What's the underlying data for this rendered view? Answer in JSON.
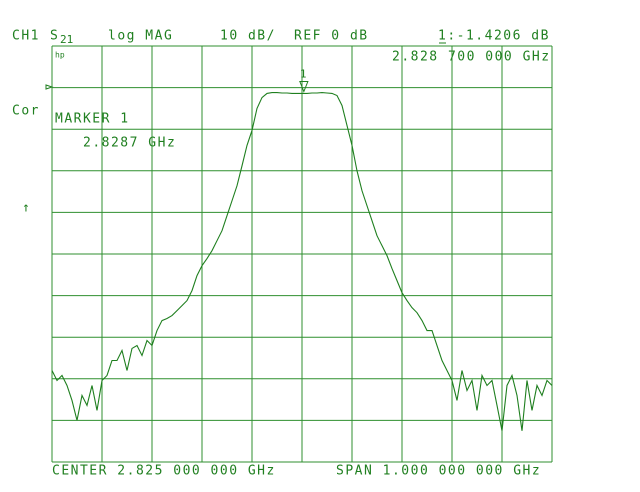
{
  "chart_data": {
    "type": "line",
    "labels": {
      "channel": "CH1",
      "param": "S",
      "param_sub": "21",
      "format": "log MAG",
      "scale": "10 dB/",
      "ref": "REF 0 dB",
      "marker_readout": "1:-1.4206 dB",
      "marker_freq": "2.828 700 000 GHz",
      "hp": "hp",
      "cor": "Cor",
      "marker_title": "MARKER 1",
      "marker_value": "2.8287 GHz",
      "arrow": "↑",
      "center": "CENTER 2.825 000 000 GHz",
      "span": "SPAN 1.000 000 000 GHz",
      "marker_num": "1"
    },
    "color": "#1f7f1f",
    "grid": true,
    "xlim": [
      2.325,
      3.325
    ],
    "ylim": [
      -90,
      10
    ],
    "xticks": [
      2.325,
      2.425,
      2.525,
      2.625,
      2.725,
      2.825,
      2.925,
      3.025,
      3.125,
      3.225,
      3.325
    ],
    "yticks": [
      10,
      0,
      -10,
      -20,
      -30,
      -40,
      -50,
      -60,
      -70,
      -80,
      -90
    ],
    "marker": {
      "x": 2.8287,
      "y": -1.4206
    },
    "x": [
      2.325,
      2.335,
      2.345,
      2.355,
      2.365,
      2.375,
      2.385,
      2.395,
      2.405,
      2.415,
      2.425,
      2.435,
      2.445,
      2.455,
      2.465,
      2.475,
      2.485,
      2.495,
      2.505,
      2.515,
      2.525,
      2.535,
      2.545,
      2.555,
      2.565,
      2.575,
      2.585,
      2.595,
      2.605,
      2.615,
      2.625,
      2.635,
      2.645,
      2.655,
      2.665,
      2.675,
      2.685,
      2.695,
      2.705,
      2.715,
      2.725,
      2.735,
      2.745,
      2.755,
      2.765,
      2.775,
      2.785,
      2.795,
      2.805,
      2.815,
      2.825,
      2.835,
      2.845,
      2.855,
      2.865,
      2.875,
      2.885,
      2.895,
      2.905,
      2.915,
      2.925,
      2.935,
      2.945,
      2.955,
      2.965,
      2.975,
      2.985,
      2.995,
      3.005,
      3.015,
      3.025,
      3.035,
      3.045,
      3.055,
      3.065,
      3.075,
      3.085,
      3.095,
      3.105,
      3.115,
      3.125,
      3.135,
      3.145,
      3.155,
      3.165,
      3.175,
      3.185,
      3.195,
      3.205,
      3.215,
      3.225,
      3.235,
      3.245,
      3.255,
      3.265,
      3.275,
      3.285,
      3.295,
      3.305,
      3.315,
      3.325
    ],
    "values": [
      -68.0,
      -70.4,
      -69.2,
      -71.6,
      -75.2,
      -80.0,
      -74.0,
      -76.4,
      -71.6,
      -77.6,
      -70.4,
      -69.2,
      -65.6,
      -65.6,
      -63.2,
      -68.0,
      -62.7,
      -62.0,
      -64.4,
      -60.8,
      -62.0,
      -58.4,
      -56.0,
      -55.5,
      -54.8,
      -53.6,
      -52.4,
      -51.2,
      -48.8,
      -45.2,
      -42.8,
      -41.1,
      -39.2,
      -36.8,
      -34.4,
      -30.8,
      -27.2,
      -23.6,
      -18.8,
      -13.9,
      -10.3,
      -5.0,
      -2.4,
      -1.4,
      -1.2,
      -1.2,
      -1.3,
      -1.3,
      -1.4,
      -1.4,
      -1.4,
      -1.4,
      -1.3,
      -1.3,
      -1.2,
      -1.3,
      -1.4,
      -1.9,
      -4.3,
      -9.1,
      -13.9,
      -20.0,
      -24.8,
      -28.4,
      -32.0,
      -35.6,
      -38.0,
      -40.4,
      -43.5,
      -46.4,
      -49.3,
      -51.2,
      -52.9,
      -54.1,
      -56.0,
      -58.4,
      -58.4,
      -62.0,
      -65.6,
      -68.0,
      -70.4,
      -75.2,
      -68.0,
      -72.8,
      -70.4,
      -77.6,
      -69.2,
      -71.6,
      -70.4,
      -76.4,
      -82.5,
      -71.6,
      -69.2,
      -74.0,
      -82.5,
      -70.4,
      -77.6,
      -71.6,
      -74.0,
      -70.4,
      -71.6
    ]
  }
}
